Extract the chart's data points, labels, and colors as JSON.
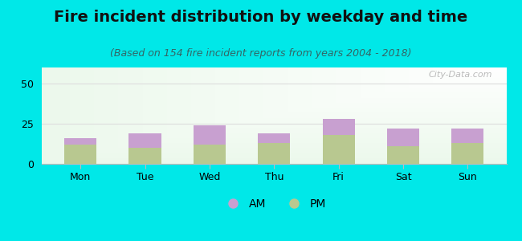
{
  "title": "Fire incident distribution by weekday and time",
  "subtitle": "(Based on 154 fire incident reports from years 2004 - 2018)",
  "categories": [
    "Mon",
    "Tue",
    "Wed",
    "Thu",
    "Fri",
    "Sat",
    "Sun"
  ],
  "pm_values": [
    12,
    10,
    12,
    13,
    18,
    11,
    13
  ],
  "am_values": [
    4,
    9,
    12,
    6,
    10,
    11,
    9
  ],
  "am_color": "#c8a0d0",
  "pm_color": "#b8c890",
  "ylim": [
    0,
    60
  ],
  "yticks": [
    0,
    25,
    50
  ],
  "background_outer": "#00e8e8",
  "grid_color": "#dddddd",
  "title_fontsize": 14,
  "subtitle_fontsize": 9,
  "tick_fontsize": 9,
  "legend_fontsize": 10,
  "bar_width": 0.5,
  "watermark": "City-Data.com"
}
